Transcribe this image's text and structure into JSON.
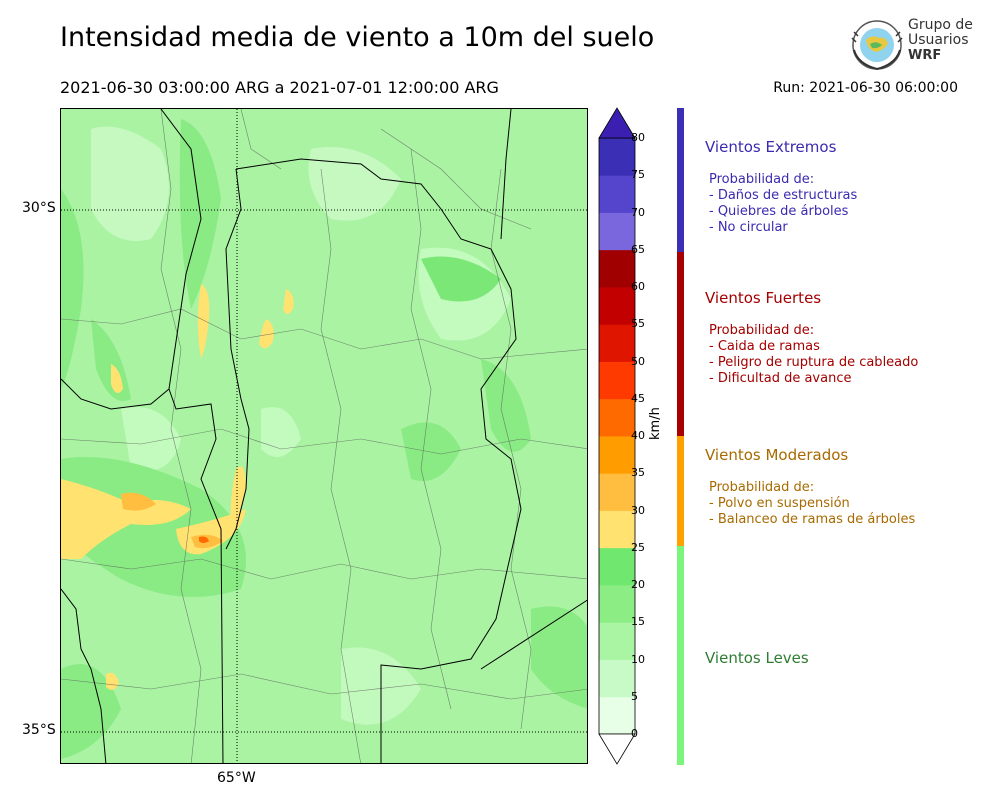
{
  "header": {
    "title": "Intensidad media de viento a 10m del suelo",
    "period": "2021-06-30 03:00:00 ARG  a  2021-07-01 12:00:00 ARG",
    "run": "Run: 2021-06-30 06:00:00"
  },
  "logo": {
    "line1": "Grupo de",
    "line2": "Usuarios",
    "line3": "WRF"
  },
  "map": {
    "lat_labels": [
      "30°S",
      "35°S"
    ],
    "lon_labels": [
      "65°W"
    ]
  },
  "colorbar": {
    "label": "km/h",
    "ticks": [
      "0",
      "5",
      "10",
      "15",
      "20",
      "25",
      "30",
      "35",
      "40",
      "45",
      "50",
      "55",
      "60",
      "65",
      "70",
      "75",
      "80"
    ],
    "colors": [
      "#e6ffe6",
      "#c8fac8",
      "#aaf5a3",
      "#8ced85",
      "#70e870",
      "#ffe270",
      "#ffbe40",
      "#ff9c00",
      "#ff6a00",
      "#ff3a00",
      "#e01500",
      "#c20000",
      "#a00000",
      "#7a66dd",
      "#5545cc",
      "#3a2fb5"
    ],
    "under_color": "#ffffff",
    "over_color": "#3a1fb0"
  },
  "legend": {
    "categories": [
      {
        "name": "Vientos Extremos",
        "color": "#3a2ab0",
        "prob_label": "Probabilidad de:",
        "items": [
          "- Daños de estructuras",
          "- Quiebres de árboles",
          "- No circular"
        ]
      },
      {
        "name": "Vientos Fuertes",
        "color": "#a30000",
        "prob_label": "Probabilidad de:",
        "items": [
          "- Caida de ramas",
          "- Peligro de ruptura de cableado",
          "- Dificultad de avance"
        ]
      },
      {
        "name": "Vientos Moderados",
        "color": "#a86a00",
        "prob_label": "Probabilidad de:",
        "items": [
          "- Polvo en suspensión",
          "- Balanceo de ramas de árboles"
        ]
      },
      {
        "name": "Vientos Leves",
        "color": "#2e7d32",
        "prob_label": "",
        "items": []
      }
    ],
    "bar_colors": [
      "#3b2fb5",
      "#a80000",
      "#ffa000",
      "#7cf57c"
    ]
  }
}
